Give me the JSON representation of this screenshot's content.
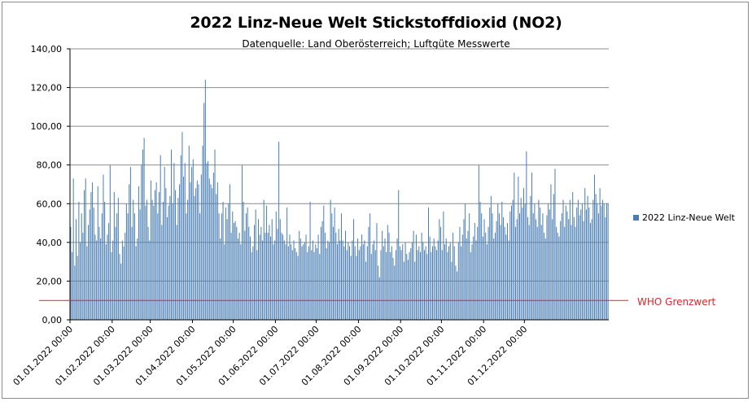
{
  "chart_data": {
    "type": "bar",
    "title": "2022 Linz-Neue Welt Stickstoffdioxid (NO2)",
    "subtitle": "Datenquelle: Land Oberösterreich; Luftgüte Messwerte",
    "ylim": [
      0,
      140
    ],
    "y_ticks": [
      "0,00",
      "20,00",
      "40,00",
      "60,00",
      "80,00",
      "100,00",
      "120,00",
      "140,00"
    ],
    "x_ticks": [
      "01.01.2022 00:00",
      "01.02.2022 00:00",
      "01.03.2022 00:00",
      "01.04.2022 00:00",
      "01.05.2022 00:00",
      "01.06.2022 00:00",
      "01.07.2022 00:00",
      "01.08.2022 00:00",
      "01.09.2022 00:00",
      "01.10.2022 00:00",
      "01.11.2022 00:00",
      "01.12.2022 00:00"
    ],
    "grid": true,
    "legend_position": "right",
    "colors": {
      "bars": "#4a7eb3",
      "threshold": "#d9262b",
      "grid": "#8c8c8c"
    },
    "series": [
      {
        "name": "2022 Linz-Neue Welt",
        "values": [
          48,
          35,
          73,
          28,
          52,
          33,
          61,
          40,
          55,
          45,
          67,
          73,
          38,
          49,
          57,
          66,
          71,
          58,
          44,
          41,
          69,
          48,
          42,
          55,
          75,
          61,
          39,
          44,
          50,
          80,
          35,
          41,
          66,
          48,
          55,
          63,
          34,
          29,
          41,
          38,
          45,
          60,
          55,
          70,
          79,
          48,
          62,
          55,
          38,
          42,
          69,
          57,
          80,
          88,
          94,
          59,
          62,
          48,
          41,
          72,
          62,
          59,
          67,
          71,
          55,
          66,
          85,
          49,
          61,
          79,
          68,
          53,
          59,
          64,
          88,
          60,
          81,
          67,
          49,
          63,
          70,
          85,
          97,
          74,
          81,
          55,
          62,
          90,
          71,
          79,
          83,
          64,
          68,
          72,
          70,
          55,
          75,
          90,
          112,
          124,
          81,
          82,
          73,
          70,
          68,
          76,
          88,
          65,
          71,
          55,
          42,
          55,
          61,
          39,
          58,
          52,
          60,
          70,
          45,
          56,
          50,
          51,
          48,
          42,
          45,
          39,
          80,
          61,
          46,
          55,
          58,
          48,
          43,
          35,
          38,
          49,
          57,
          36,
          52,
          44,
          48,
          41,
          62,
          45,
          59,
          45,
          49,
          43,
          52,
          39,
          41,
          56,
          47,
          92,
          52,
          45,
          44,
          41,
          39,
          58,
          38,
          44,
          39,
          36,
          41,
          37,
          35,
          33,
          46,
          42,
          38,
          39,
          40,
          44,
          35,
          38,
          61,
          36,
          41,
          35,
          39,
          37,
          44,
          34,
          48,
          51,
          59,
          45,
          37,
          41,
          40,
          62,
          55,
          48,
          58,
          45,
          39,
          47,
          41,
          55,
          41,
          38,
          46,
          36,
          40,
          38,
          33,
          41,
          52,
          38,
          33,
          42,
          36,
          38,
          44,
          39,
          41,
          30,
          38,
          48,
          55,
          34,
          39,
          41,
          36,
          50,
          28,
          22,
          36,
          46,
          38,
          42,
          35,
          49,
          45,
          35,
          38,
          32,
          28,
          36,
          42,
          67,
          38,
          36,
          39,
          30,
          40,
          34,
          31,
          35,
          37,
          40,
          46,
          30,
          44,
          36,
          38,
          35,
          45,
          40,
          36,
          38,
          34,
          58,
          43,
          35,
          38,
          42,
          38,
          36,
          41,
          52,
          48,
          36,
          56,
          39,
          42,
          35,
          38,
          40,
          30,
          45,
          38,
          28,
          25,
          40,
          48,
          38,
          44,
          52,
          60,
          42,
          46,
          55,
          35,
          39,
          43,
          50,
          41,
          48,
          80,
          61,
          55,
          43,
          52,
          45,
          39,
          48,
          58,
          64,
          55,
          42,
          45,
          51,
          60,
          55,
          49,
          61,
          53,
          48,
          44,
          50,
          41,
          56,
          59,
          62,
          76,
          48,
          52,
          74,
          55,
          63,
          58,
          68,
          60,
          87,
          53,
          49,
          64,
          76,
          55,
          60,
          52,
          48,
          62,
          58,
          49,
          55,
          45,
          42,
          54,
          60,
          57,
          70,
          52,
          65,
          78,
          48,
          45,
          43,
          51,
          55,
          62,
          48,
          59,
          56,
          52,
          62,
          49,
          66,
          53,
          48,
          58,
          62,
          54,
          57,
          60,
          51,
          68,
          57,
          64,
          58,
          50,
          52,
          62,
          75,
          65,
          60,
          55,
          68,
          59,
          62,
          60,
          53,
          60,
          60
        ]
      }
    ],
    "threshold": {
      "label": "WHO Grenzwert",
      "value": 10
    }
  }
}
